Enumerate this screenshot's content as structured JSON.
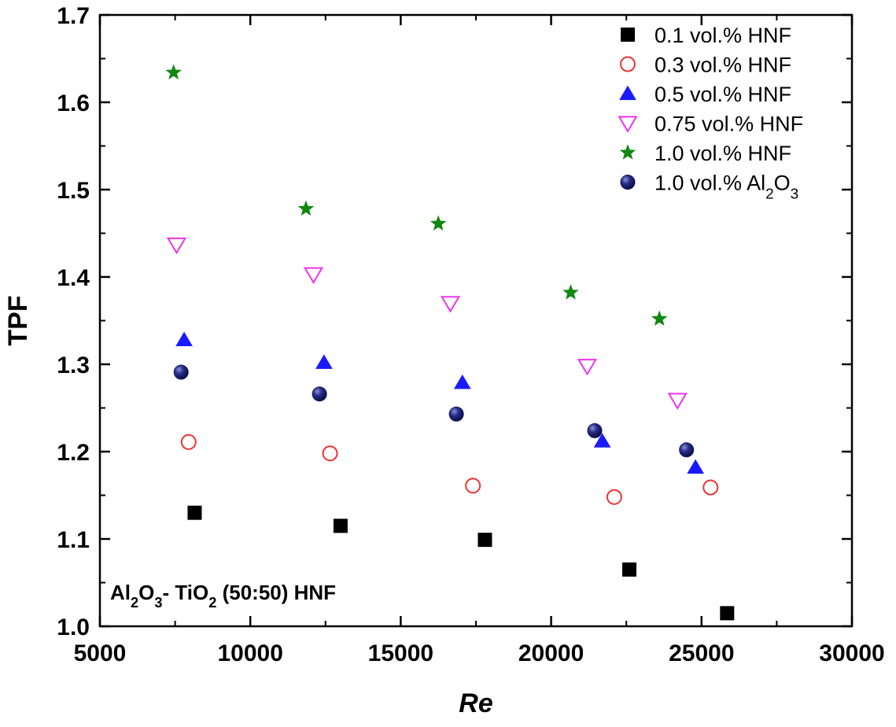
{
  "chart_data": {
    "type": "scatter",
    "xlabel": "Re",
    "ylabel": "TPF",
    "xlim": [
      5000,
      30000
    ],
    "ylim": [
      1.0,
      1.7
    ],
    "xticks": [
      5000,
      10000,
      15000,
      20000,
      25000,
      30000
    ],
    "yticks": [
      1.0,
      1.1,
      1.2,
      1.3,
      1.4,
      1.5,
      1.6,
      1.7
    ],
    "xtick_labels": [
      "5000",
      "10000",
      "15000",
      "20000",
      "25000",
      "30000"
    ],
    "ytick_labels": [
      "1.0",
      "1.1",
      "1.2",
      "1.3",
      "1.4",
      "1.5",
      "1.6",
      "1.7"
    ],
    "legend_position": "top-right",
    "annotation": {
      "parts": [
        "Al",
        "2",
        "O",
        "3",
        "- TiO",
        "2",
        " (50:50) HNF"
      ],
      "position": "bottom-left"
    },
    "series": [
      {
        "name": "0.1 vol.% HNF",
        "label_parts": [
          "0.1 vol.% HNF"
        ],
        "marker": "filled-square",
        "color": "#000000",
        "x": [
          8150,
          13000,
          17800,
          22600,
          25850
        ],
        "y": [
          1.13,
          1.115,
          1.099,
          1.065,
          1.015
        ]
      },
      {
        "name": "0.3 vol.% HNF",
        "label_parts": [
          "0.3 vol.% HNF"
        ],
        "marker": "open-circle",
        "color": "#ee3333",
        "x": [
          7950,
          12650,
          17400,
          22100,
          25300
        ],
        "y": [
          1.211,
          1.198,
          1.161,
          1.148,
          1.159
        ]
      },
      {
        "name": "0.5 vol.% HNF",
        "label_parts": [
          "0.5 vol.% HNF"
        ],
        "marker": "filled-triangle-up",
        "color": "#1a1aff",
        "x": [
          7800,
          12450,
          17050,
          21700,
          24800
        ],
        "y": [
          1.328,
          1.302,
          1.279,
          1.212,
          1.182
        ]
      },
      {
        "name": "0.75 vol.% HNF",
        "label_parts": [
          "0.75 vol.% HNF"
        ],
        "marker": "open-triangle-down",
        "color": "#ee33ee",
        "x": [
          7550,
          12100,
          16650,
          21200,
          24200
        ],
        "y": [
          1.437,
          1.403,
          1.37,
          1.298,
          1.259
        ]
      },
      {
        "name": "1.0 vol.% HNF",
        "label_parts": [
          "1.0 vol.% HNF"
        ],
        "marker": "filled-star",
        "color": "#118811",
        "x": [
          7450,
          11850,
          16250,
          20650,
          23600
        ],
        "y": [
          1.634,
          1.478,
          1.461,
          1.382,
          1.352
        ]
      },
      {
        "name": "1.0 vol.% Al2O3",
        "label_parts": [
          "1.0 vol.% Al",
          "2",
          "O",
          "3"
        ],
        "marker": "filled-sphere",
        "color": "#141a66",
        "x": [
          7700,
          12300,
          16850,
          21450,
          24500
        ],
        "y": [
          1.291,
          1.266,
          1.243,
          1.224,
          1.202
        ]
      }
    ]
  }
}
